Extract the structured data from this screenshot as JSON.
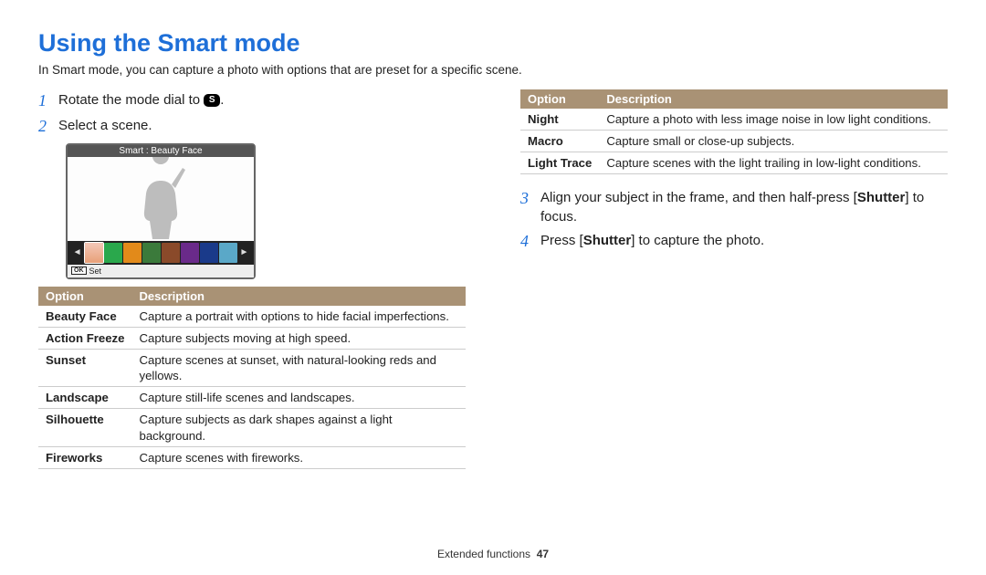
{
  "title": "Using the Smart mode",
  "intro": "In Smart mode, you can capture a photo with options that are preset for a specific scene.",
  "steps_left": [
    {
      "num": "1",
      "text_pre": "Rotate the mode dial to ",
      "icon": "S",
      "text_post": "."
    },
    {
      "num": "2",
      "text_pre": "Select a scene.",
      "icon": "",
      "text_post": ""
    }
  ],
  "lcd": {
    "header": "Smart : Beauty Face",
    "footer_ok": "OK",
    "footer_label": "Set",
    "thumbs": [
      "#f4c8b8",
      "#2aa84c",
      "#e28a1a",
      "#3b7a3b",
      "#8a4a2a",
      "#6a2a8a",
      "#1a3a8a",
      "#5aa8c8"
    ]
  },
  "table_headers": {
    "option": "Option",
    "desc": "Description"
  },
  "table_left": [
    {
      "name": "Beauty Face",
      "desc": "Capture a portrait with options to hide facial imperfections."
    },
    {
      "name": "Action Freeze",
      "desc": "Capture subjects moving at high speed."
    },
    {
      "name": "Sunset",
      "desc": "Capture scenes at sunset, with natural-looking reds and yellows."
    },
    {
      "name": "Landscape",
      "desc": "Capture still-life scenes and landscapes."
    },
    {
      "name": "Silhouette",
      "desc": "Capture subjects as dark shapes against a light background."
    },
    {
      "name": "Fireworks",
      "desc": "Capture scenes with fireworks."
    }
  ],
  "table_right": [
    {
      "name": "Night",
      "desc": "Capture a photo with less image noise in low light conditions."
    },
    {
      "name": "Macro",
      "desc": "Capture small or close-up subjects."
    },
    {
      "name": "Light Trace",
      "desc": "Capture scenes with the light trailing in low-light conditions."
    }
  ],
  "steps_right": [
    {
      "num": "3",
      "html": "Align your subject in the frame, and then half-press [<b>Shutter</b>] to focus."
    },
    {
      "num": "4",
      "html": "Press [<b>Shutter</b>] to capture the photo."
    }
  ],
  "footer": {
    "section": "Extended functions",
    "page": "47"
  },
  "colors": {
    "title": "#1e6fd8",
    "table_header_bg": "#a99275"
  }
}
